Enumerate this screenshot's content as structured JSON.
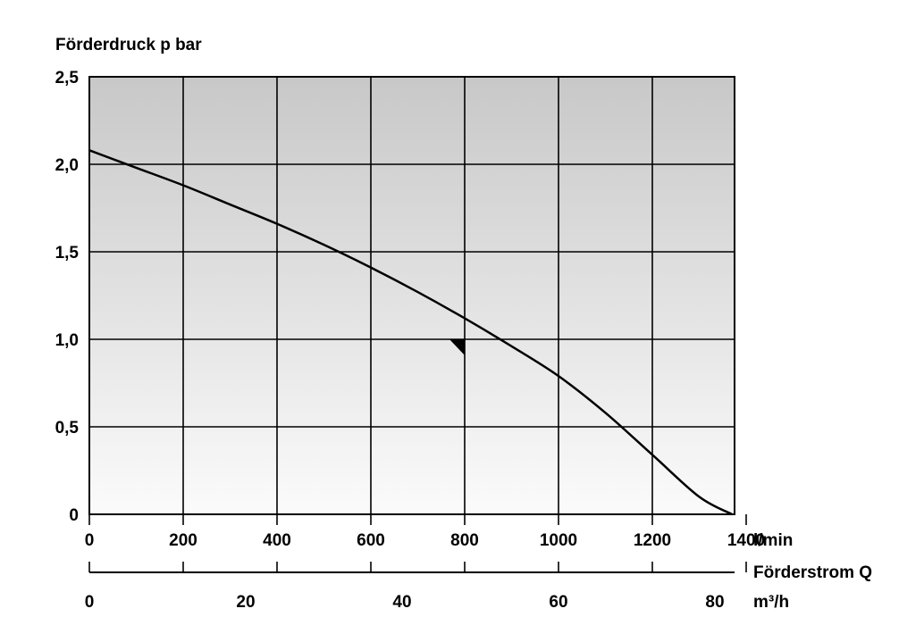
{
  "chart_data": {
    "type": "line",
    "ylabel": "Förderdruck p bar",
    "x_unit_top": "l/min",
    "x_label_secondary": "Förderstrom Q",
    "x_unit_bottom": "m³/h",
    "ylim": [
      0,
      2.5
    ],
    "xlim": [
      0,
      1380
    ],
    "y_ticks": [
      {
        "v": 0,
        "label": "0"
      },
      {
        "v": 0.5,
        "label": "0,5"
      },
      {
        "v": 1.0,
        "label": "1,0"
      },
      {
        "v": 1.5,
        "label": "1,5"
      },
      {
        "v": 2.0,
        "label": "2,0"
      },
      {
        "v": 2.5,
        "label": "2,5"
      }
    ],
    "x_ticks_lmin": [
      {
        "v": 0,
        "label": "0"
      },
      {
        "v": 200,
        "label": "200"
      },
      {
        "v": 400,
        "label": "400"
      },
      {
        "v": 600,
        "label": "600"
      },
      {
        "v": 800,
        "label": "800"
      },
      {
        "v": 1000,
        "label": "1000"
      },
      {
        "v": 1200,
        "label": "1200"
      },
      {
        "v": 1400,
        "label": "1400"
      }
    ],
    "x_ticks_m3h": [
      {
        "v": 0,
        "label": "0"
      },
      {
        "v": 20,
        "label": "20"
      },
      {
        "v": 40,
        "label": "40"
      },
      {
        "v": 60,
        "label": "60"
      },
      {
        "v": 80,
        "label": "80"
      }
    ],
    "grid": true,
    "series": [
      {
        "x": [
          0,
          100,
          200,
          300,
          400,
          500,
          600,
          700,
          800,
          900,
          1000,
          1100,
          1200,
          1300,
          1370
        ],
        "y": [
          2.08,
          1.98,
          1.88,
          1.77,
          1.66,
          1.54,
          1.41,
          1.27,
          1.12,
          0.96,
          0.79,
          0.58,
          0.34,
          0.1,
          0.0
        ]
      }
    ],
    "marker": {
      "x": 800,
      "y": 1.0
    }
  }
}
